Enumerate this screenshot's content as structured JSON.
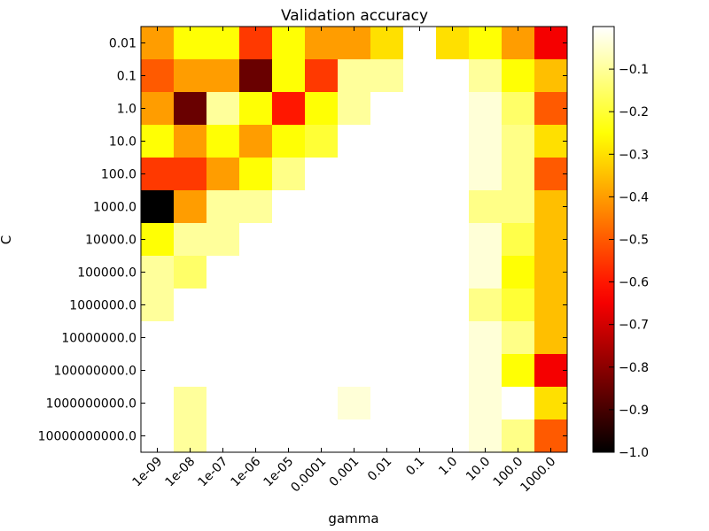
{
  "chart_data": {
    "type": "heatmap",
    "title": "Validation accuracy",
    "xlabel": "gamma",
    "ylabel": "C",
    "x_categories": [
      "1e-09",
      "1e-08",
      "1e-07",
      "1e-06",
      "1e-05",
      "0.0001",
      "0.001",
      "0.01",
      "0.1",
      "1.0",
      "10.0",
      "100.0",
      "1000.0"
    ],
    "y_categories": [
      "0.01",
      "0.1",
      "1.0",
      "10.0",
      "100.0",
      "1000.0",
      "10000.0",
      "100000.0",
      "1000000.0",
      "10000000.0",
      "100000000.0",
      "1000000000.0",
      "10000000000.0"
    ],
    "values": [
      [
        -0.4,
        -0.25,
        -0.25,
        -0.55,
        -0.25,
        -0.4,
        -0.4,
        -0.3,
        0.0,
        -0.3,
        -0.25,
        -0.4,
        -0.65
      ],
      [
        -0.5,
        -0.4,
        -0.4,
        -0.85,
        -0.25,
        -0.55,
        -0.1,
        -0.1,
        null,
        null,
        -0.1,
        -0.25,
        -0.35
      ],
      [
        -0.4,
        -0.85,
        -0.1,
        -0.25,
        -0.6,
        -0.25,
        -0.1,
        null,
        null,
        null,
        -0.04,
        -0.15,
        -0.5
      ],
      [
        -0.25,
        -0.4,
        -0.25,
        -0.4,
        -0.25,
        -0.2,
        null,
        null,
        null,
        null,
        -0.04,
        -0.12,
        -0.3
      ],
      [
        -0.55,
        -0.55,
        -0.4,
        -0.25,
        -0.12,
        null,
        null,
        null,
        null,
        null,
        -0.04,
        -0.12,
        -0.5
      ],
      [
        -1.0,
        -0.4,
        -0.1,
        -0.1,
        null,
        null,
        null,
        null,
        null,
        null,
        -0.12,
        -0.12,
        -0.35
      ],
      [
        -0.25,
        -0.1,
        -0.1,
        null,
        null,
        null,
        null,
        null,
        null,
        null,
        -0.04,
        -0.18,
        -0.35
      ],
      [
        -0.1,
        -0.15,
        null,
        null,
        null,
        null,
        null,
        null,
        null,
        null,
        -0.04,
        -0.25,
        -0.35
      ],
      [
        -0.1,
        null,
        null,
        null,
        null,
        null,
        null,
        null,
        null,
        null,
        -0.12,
        -0.2,
        -0.35
      ],
      [
        null,
        null,
        null,
        null,
        null,
        null,
        null,
        null,
        null,
        null,
        -0.04,
        -0.12,
        -0.35
      ],
      [
        null,
        null,
        null,
        null,
        null,
        null,
        null,
        null,
        null,
        null,
        -0.04,
        -0.25,
        -0.65
      ],
      [
        null,
        -0.1,
        null,
        null,
        null,
        null,
        -0.04,
        null,
        null,
        null,
        -0.04,
        0.0,
        -0.3
      ],
      [
        null,
        -0.1,
        null,
        null,
        null,
        null,
        null,
        null,
        null,
        null,
        -0.04,
        -0.12,
        -0.5
      ]
    ],
    "colorbar": {
      "colormap": "hot",
      "vmin": -1.0,
      "vmax": 0.0,
      "ticks": [
        -1.0,
        -0.9,
        -0.8,
        -0.7,
        -0.6,
        -0.5,
        -0.4,
        -0.3,
        -0.2,
        -0.1
      ],
      "tick_labels": [
        "−1.0",
        "−0.9",
        "−0.8",
        "−0.7",
        "−0.6",
        "−0.5",
        "−0.4",
        "−0.3",
        "−0.2",
        "−0.1"
      ]
    },
    "missing_color": "#ffffff"
  }
}
